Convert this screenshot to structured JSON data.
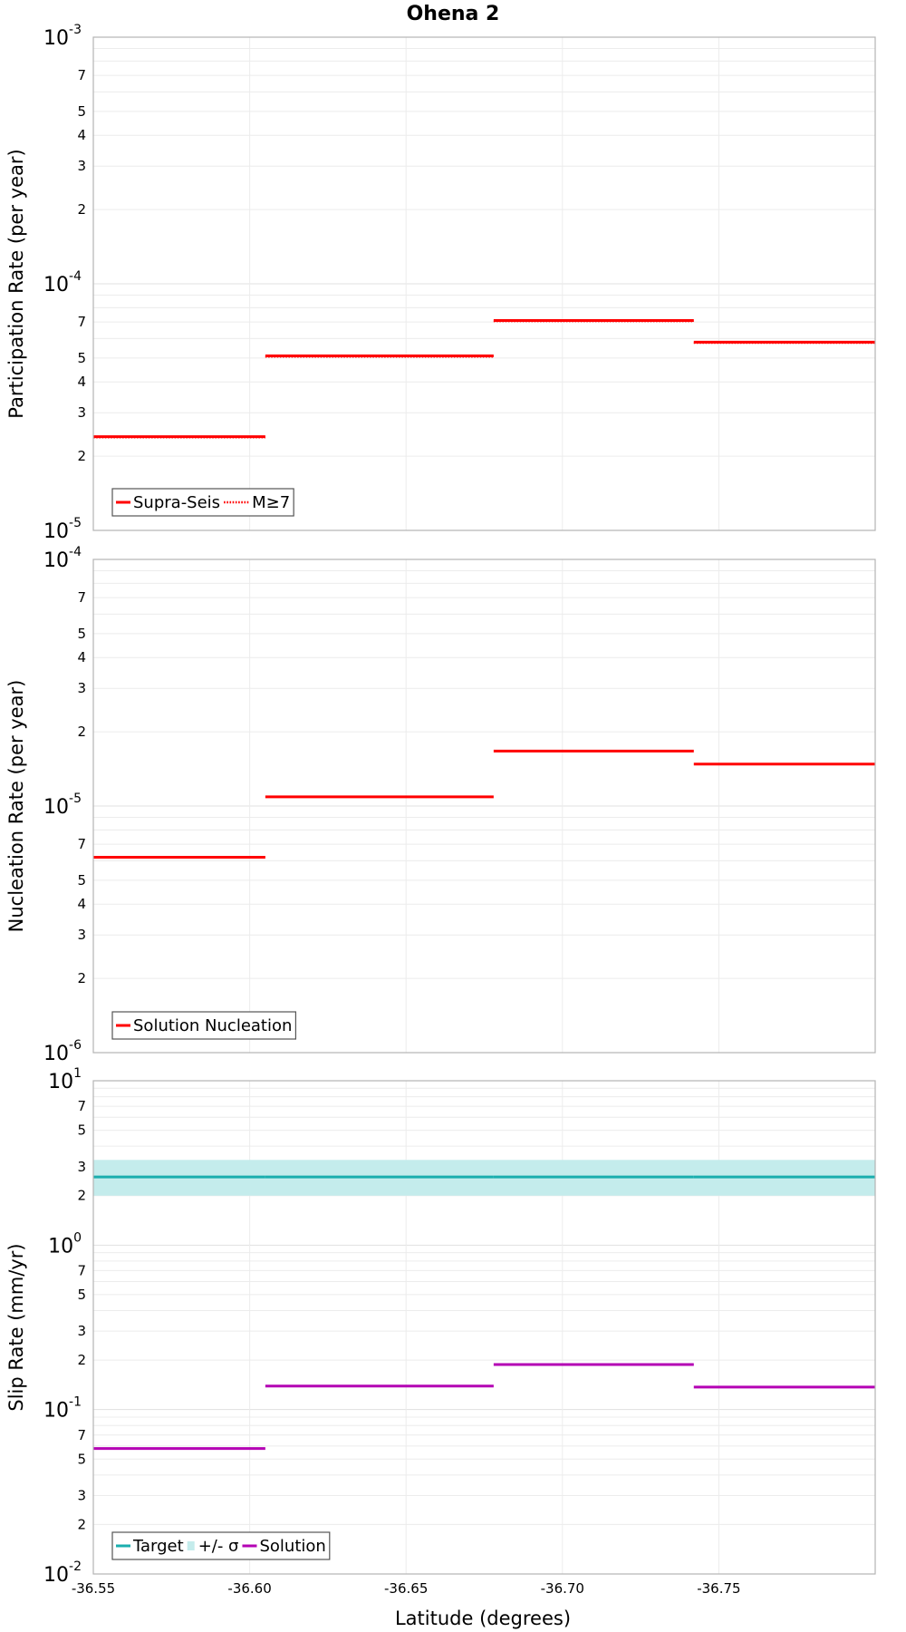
{
  "chart_data": {
    "title": "Ohena 2",
    "xlabel": "Latitude (degrees)",
    "xlim": [
      -36.55,
      -36.8
    ],
    "xticks": [
      {
        "value": -36.55,
        "label": "-36.55"
      },
      {
        "value": -36.6,
        "label": "-36.60"
      },
      {
        "value": -36.65,
        "label": "-36.65"
      },
      {
        "value": -36.7,
        "label": "-36.70"
      },
      {
        "value": -36.75,
        "label": "-36.75"
      }
    ],
    "section_boundaries": [
      -36.55,
      -36.605,
      -36.678,
      -36.742,
      -36.8
    ],
    "panels": [
      {
        "type": "step",
        "ylabel": "Participation Rate (per year)",
        "yscale": "log",
        "ylim": [
          1e-05,
          0.001
        ],
        "decade_labels": [
          {
            "exp": -3,
            "base": "10",
            "power": "-3"
          },
          {
            "exp": -4,
            "base": "10",
            "power": "-4"
          },
          {
            "exp": -5,
            "base": "10",
            "power": "-5"
          }
        ],
        "series": [
          {
            "name": "Supra-Seis",
            "color": "#ff0000",
            "style": "solid",
            "values": [
              2.4e-05,
              5.1e-05,
              7.1e-05,
              5.8e-05
            ]
          },
          {
            "name": "M≥7",
            "color": "#ff0000",
            "style": "dotted",
            "values": [
              2.4e-05,
              5.1e-05,
              7.1e-05,
              5.8e-05
            ]
          }
        ],
        "legend": [
          {
            "label": "Supra-Seis",
            "color": "#ff0000",
            "kind": "solid"
          },
          {
            "label": "M≥7",
            "color": "#ff0000",
            "kind": "dotted"
          }
        ]
      },
      {
        "type": "step",
        "ylabel": "Nucleation Rate (per year)",
        "yscale": "log",
        "ylim": [
          1e-06,
          0.0001
        ],
        "decade_labels": [
          {
            "exp": -4,
            "base": "10",
            "power": "-4"
          },
          {
            "exp": -5,
            "base": "10",
            "power": "-5"
          },
          {
            "exp": -6,
            "base": "10",
            "power": "-6"
          }
        ],
        "series": [
          {
            "name": "Solution Nucleation",
            "color": "#ff0000",
            "style": "solid",
            "values": [
              6.2e-06,
              1.09e-05,
              1.67e-05,
              1.48e-05
            ]
          }
        ],
        "legend": [
          {
            "label": "Solution Nucleation",
            "color": "#ff0000",
            "kind": "solid"
          }
        ]
      },
      {
        "type": "step",
        "ylabel": "Slip Rate (mm/yr)",
        "yscale": "log",
        "ylim": [
          0.01,
          10
        ],
        "decade_labels": [
          {
            "exp": 1,
            "base": "10",
            "power": "1"
          },
          {
            "exp": 0,
            "base": "10",
            "power": "0"
          },
          {
            "exp": -1,
            "base": "10",
            "power": "-1"
          },
          {
            "exp": -2,
            "base": "10",
            "power": "-2"
          }
        ],
        "band": {
          "name": "+/- σ",
          "color": "#c4ecec",
          "lower": 2.0,
          "upper": 3.3
        },
        "series": [
          {
            "name": "Target",
            "color": "#1aaeae",
            "style": "solid",
            "values": [
              2.6,
              2.6,
              2.6,
              2.6
            ]
          },
          {
            "name": "Solution",
            "color": "#b400b4",
            "style": "solid",
            "values": [
              0.058,
              0.139,
              0.188,
              0.137
            ]
          }
        ],
        "legend": [
          {
            "label": "Target",
            "color": "#1aaeae",
            "kind": "solid"
          },
          {
            "label": "+/- σ",
            "color": "#c4ecec",
            "kind": "band"
          },
          {
            "label": "Solution",
            "color": "#b400b4",
            "kind": "solid"
          }
        ]
      }
    ]
  }
}
